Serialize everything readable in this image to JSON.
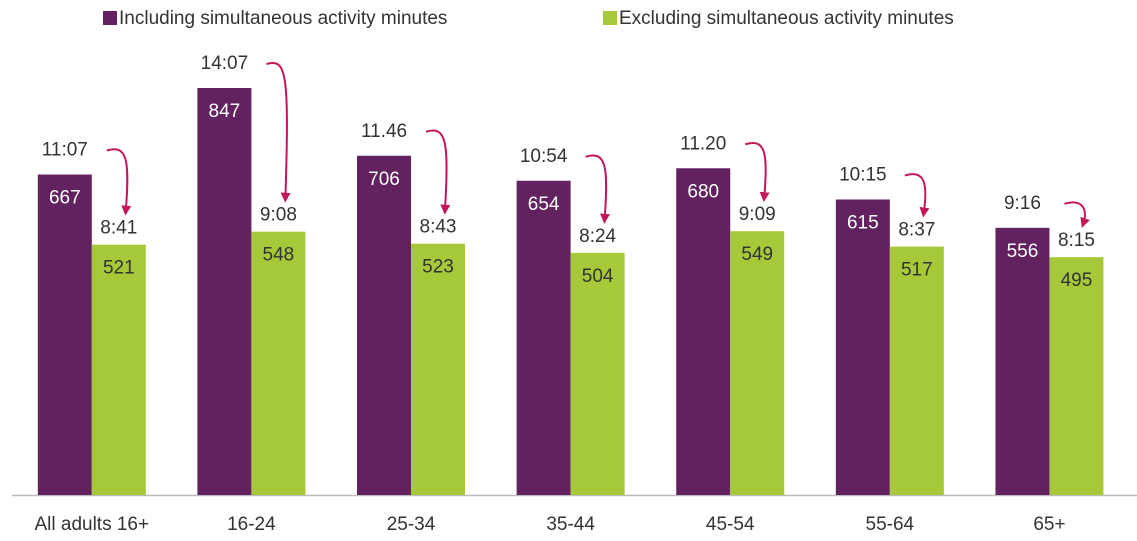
{
  "chart_data": {
    "type": "bar",
    "categories": [
      "All adults 16+",
      "16-24",
      "25-34",
      "35-44",
      "45-54",
      "55-64",
      "65+"
    ],
    "series": [
      {
        "name": "Including simultaneous activity minutes",
        "color": "#62215f",
        "values": [
          667,
          847,
          706,
          654,
          680,
          615,
          556
        ],
        "time_labels": [
          "11:07",
          "14:07",
          "11.46",
          "10:54",
          "11.20",
          "10:15",
          "9:16"
        ]
      },
      {
        "name": "Excluding simultaneous activity minutes",
        "color": "#a6c93a",
        "values": [
          521,
          548,
          523,
          504,
          549,
          517,
          495
        ],
        "time_labels": [
          "8:41",
          "9:08",
          "8:43",
          "8:24",
          "9:09",
          "8:37",
          "8:15"
        ]
      }
    ],
    "annotation_color": "#c2185b",
    "ylim": [
      0,
      1000
    ]
  }
}
